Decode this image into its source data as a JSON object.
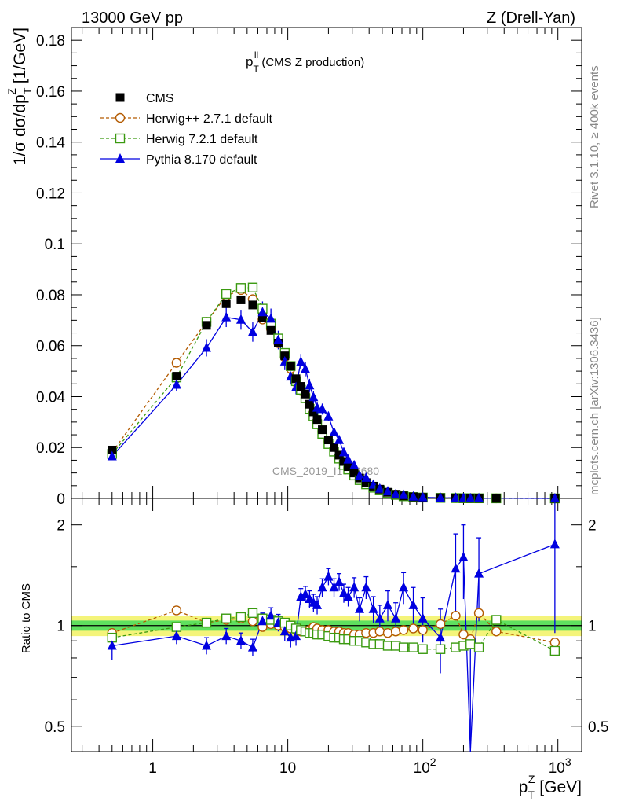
{
  "header": {
    "left": "13000 GeV pp",
    "right": "Z (Drell-Yan)"
  },
  "side_text": {
    "rivet": "Rivet 3.1.10, ≥ 400k events",
    "mcplots": "mcplots.cern.ch [arXiv:1306.3436]"
  },
  "panel_title": {
    "main": "p",
    "sup": "ll",
    "sub": "T",
    "rest": " (CMS Z production)"
  },
  "watermark": "CMS_2019_I1753680",
  "axes": {
    "ylabel_main": "1/σ dσ/dp",
    "ylabel_sup": "Z",
    "ylabel_sub": "T",
    "ylabel_unit": " [1/GeV]",
    "ylabel_ratio": "Ratio to CMS",
    "xlabel_main": "p",
    "xlabel_sup": "Z",
    "xlabel_sub": "T",
    "xlabel_unit": " [GeV]"
  },
  "colors": {
    "cms": "#000000",
    "herwigpp": "#b35a00",
    "herwig7": "#3a9a10",
    "pythia": "#0000e0",
    "band_inner": "#5fe05f",
    "band_outer": "#f4f47a"
  },
  "chart_data": {
    "type": "scatter",
    "x_scale": "log",
    "xlim": [
      0.25,
      1500
    ],
    "ylim_main": [
      0,
      0.185
    ],
    "ylim_ratio": "log [0.42, 2.4]",
    "y_ticks_main": [
      "0",
      "0.02",
      "0.04",
      "0.06",
      "0.08",
      "0.1",
      "0.12",
      "0.14",
      "0.16",
      "0.18"
    ],
    "y_ticks_ratio": [
      "0.5",
      "1",
      "2"
    ],
    "x_ticks": [
      {
        "base": "1",
        "exp": ""
      },
      {
        "base": "10",
        "exp": ""
      },
      {
        "base": "10",
        "exp": "2"
      },
      {
        "base": "10",
        "exp": "3"
      }
    ],
    "legend_position": "top-left",
    "legend": [
      {
        "key": "cms",
        "label": "CMS"
      },
      {
        "key": "herwigpp",
        "label": "Herwig++ 2.7.1 default"
      },
      {
        "key": "herwig7",
        "label": "Herwig 7.2.1 default"
      },
      {
        "key": "pythia",
        "label": "Pythia 8.170 default"
      }
    ],
    "x": [
      0.5,
      1.5,
      2.5,
      3.5,
      4.5,
      5.5,
      6.5,
      7.5,
      8.5,
      9.5,
      10.5,
      11.5,
      12.5,
      13.5,
      14.5,
      15.5,
      16.5,
      18,
      20,
      22,
      24,
      26,
      28,
      31,
      34,
      38,
      43,
      48,
      55,
      63,
      72,
      85,
      100,
      135,
      175,
      200,
      225,
      260,
      350,
      950
    ],
    "cms": [
      0.019,
      0.048,
      0.068,
      0.0765,
      0.078,
      0.076,
      0.071,
      0.066,
      0.061,
      0.056,
      0.052,
      0.047,
      0.044,
      0.041,
      0.037,
      0.034,
      0.031,
      0.027,
      0.023,
      0.02,
      0.017,
      0.0145,
      0.0125,
      0.01,
      0.008,
      0.0062,
      0.0048,
      0.0036,
      0.0024,
      0.0016,
      0.001,
      0.0006,
      0.0004,
      0.00025,
      0.00015,
      0.0001,
      8e-05,
      6e-05,
      3e-05,
      1e-05
    ],
    "cms_err": [
      0.0008,
      0.0012,
      0.0015,
      0.0016,
      0.0016,
      0.0016,
      0.0015,
      0.0014,
      0.0013,
      0.0012,
      0.0011,
      0.001,
      0.001,
      0.0009,
      0.0008,
      0.0008,
      0.0007,
      0.0006,
      0.0005,
      0.0005,
      0.0004,
      0.0004,
      0.0003,
      0.0003,
      0.0002,
      0.0002,
      0.0001,
      0.0001,
      0.0001,
      5e-05,
      4e-05,
      3e-05,
      2e-05,
      1e-05,
      1e-05,
      1e-05,
      1e-05,
      1e-05,
      1e-05,
      1e-05
    ],
    "herwigpp_ratio": [
      0.95,
      1.11,
      1.02,
      1.04,
      1.05,
      1.03,
      0.99,
      1.01,
      1.0,
      0.99,
      0.98,
      0.97,
      0.96,
      0.96,
      0.97,
      0.99,
      0.98,
      0.97,
      0.97,
      0.96,
      0.96,
      0.95,
      0.95,
      0.94,
      0.94,
      0.95,
      0.95,
      0.96,
      0.95,
      0.96,
      0.97,
      0.98,
      0.97,
      1.01,
      1.07,
      0.94,
      0.91,
      1.09,
      0.96,
      0.89
    ],
    "herwig7_ratio": [
      0.92,
      0.99,
      1.02,
      1.05,
      1.06,
      1.09,
      1.05,
      1.04,
      1.03,
      1.02,
      1.0,
      0.98,
      0.97,
      0.96,
      0.95,
      0.95,
      0.94,
      0.94,
      0.93,
      0.92,
      0.92,
      0.91,
      0.91,
      0.9,
      0.9,
      0.89,
      0.88,
      0.88,
      0.87,
      0.87,
      0.86,
      0.86,
      0.85,
      0.85,
      0.86,
      0.87,
      0.88,
      0.86,
      1.04,
      0.84
    ],
    "pythia_ratio": [
      0.87,
      0.93,
      0.87,
      0.93,
      0.9,
      0.86,
      1.03,
      1.07,
      1.02,
      0.96,
      0.92,
      0.93,
      1.22,
      1.24,
      1.2,
      1.17,
      1.15,
      1.3,
      1.4,
      1.3,
      1.35,
      1.25,
      1.22,
      1.3,
      1.12,
      1.3,
      1.12,
      1.05,
      1.15,
      1.05,
      1.3,
      1.15,
      1.05,
      0.92,
      1.48,
      1.6,
      0.3,
      1.43,
      null,
      1.75
    ],
    "pythia_ratio_err": [
      0.08,
      0.05,
      0.05,
      0.05,
      0.05,
      0.05,
      0.06,
      0.06,
      0.06,
      0.06,
      0.06,
      0.06,
      0.07,
      0.07,
      0.07,
      0.07,
      0.07,
      0.08,
      0.08,
      0.08,
      0.08,
      0.08,
      0.08,
      0.09,
      0.09,
      0.1,
      0.1,
      0.1,
      0.12,
      0.12,
      0.14,
      0.15,
      0.16,
      0.2,
      0.4,
      0.4,
      0.6,
      0.4,
      null,
      0.8
    ]
  }
}
